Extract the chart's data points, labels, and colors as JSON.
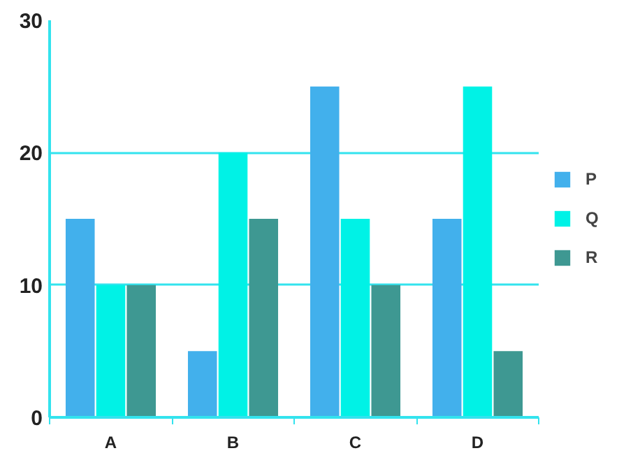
{
  "chart_data": {
    "type": "bar",
    "categories": [
      "A",
      "B",
      "C",
      "D"
    ],
    "series": [
      {
        "name": "P",
        "color": "#42b0ec",
        "values": [
          15,
          5,
          25,
          15
        ]
      },
      {
        "name": "Q",
        "color": "#00f2e6",
        "values": [
          10,
          20,
          15,
          25
        ]
      },
      {
        "name": "R",
        "color": "#3e9892",
        "values": [
          10,
          15,
          10,
          5
        ]
      }
    ],
    "ylim": [
      0,
      30
    ],
    "yticks": [
      0,
      10,
      20,
      30
    ],
    "grid": "y",
    "legend": "right"
  }
}
